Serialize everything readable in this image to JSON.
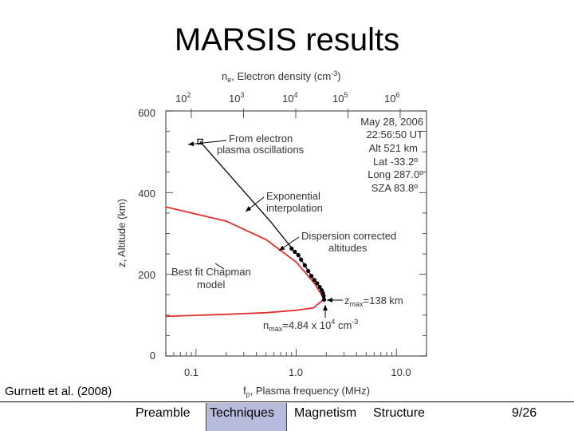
{
  "slide": {
    "title": "MARSIS results",
    "citation": "Gurnett et al. (2008)",
    "page": "9/26"
  },
  "nav": {
    "items": [
      "Preamble",
      "Techniques",
      "Magnetism",
      "Structure"
    ],
    "active": "Techniques"
  },
  "figure": {
    "top_axis_label": "n",
    "top_axis_label_sub": "e",
    "top_axis_label_rest": ", Electron density (cm",
    "top_axis_label_sup": "-3",
    "top_axis_label_end": ")",
    "top_ticks": [
      {
        "base": "10",
        "exp": "2"
      },
      {
        "base": "10",
        "exp": "3"
      },
      {
        "base": "10",
        "exp": "4"
      },
      {
        "base": "10",
        "exp": "5"
      },
      {
        "base": "10",
        "exp": "6"
      }
    ],
    "y_axis_label": "z, Altitude (km)",
    "y_ticks": [
      "600",
      "400",
      "200",
      "0"
    ],
    "x_ticks": [
      "0.1",
      "1.0",
      "10.0"
    ],
    "x_axis_label": "f",
    "x_axis_label_sub": "p",
    "x_axis_label_rest": ", Plasma frequency (MHz)",
    "info_lines": [
      "May 28, 2006",
      "22:56:50 UT",
      "Alt  521 km",
      "Lat  -33.2º",
      "Long  287.0º",
      "SZA  83.8º"
    ],
    "annotations": {
      "electron_line1": "From electron",
      "electron_line2": "plasma oscillations",
      "exp_line1": "Exponential",
      "exp_line2": "interpolation",
      "disp_line1": "Dispersion corrected",
      "disp_line2": "altitudes",
      "chapman_line1": "Best fit Chapman",
      "chapman_line2": "model",
      "zmax_sym": "z",
      "zmax_sub": "max",
      "zmax_val": "=138 km",
      "nmax_sym": "n",
      "nmax_sub": "max",
      "nmax_val": "=4.84 x 10",
      "nmax_exp": "4",
      "nmax_unit": " cm",
      "nmax_unit_exp": "-3"
    }
  },
  "chart_data": {
    "type": "line",
    "title": "",
    "xlabel": "fp, Plasma frequency (MHz)",
    "ylabel": "z, Altitude (km)",
    "x_scale": "log",
    "xlim": [
      0.05,
      20
    ],
    "ylim": [
      0,
      600
    ],
    "secondary_xlabel": "ne, Electron density (cm-3)",
    "series": [
      {
        "name": "From electron plasma oscillations",
        "x": [
          0.11
        ],
        "y": [
          525
        ]
      },
      {
        "name": "Exponential interpolation",
        "x": [
          0.11,
          0.55,
          0.9
        ],
        "y": [
          525,
          330,
          265
        ]
      },
      {
        "name": "Dispersion corrected altitudes",
        "x": [
          0.9,
          0.97,
          1.05,
          1.12,
          1.22,
          1.32,
          1.42,
          1.52,
          1.62,
          1.72,
          1.8,
          1.85,
          1.88,
          1.9
        ],
        "y": [
          263,
          255,
          247,
          236,
          222,
          208,
          196,
          186,
          178,
          169,
          161,
          154,
          147,
          138
        ]
      },
      {
        "name": "Best fit Chapman model",
        "x": [
          0.05,
          0.2,
          0.5,
          1.0,
          1.5,
          1.9,
          1.5,
          1.0,
          0.5,
          0.2,
          0.05
        ],
        "y": [
          365,
          330,
          285,
          230,
          180,
          140,
          118,
          112,
          106,
          102,
          97
        ]
      }
    ],
    "annotations": [
      "zmax=138 km",
      "nmax=4.84 x 10^4 cm-3"
    ]
  }
}
